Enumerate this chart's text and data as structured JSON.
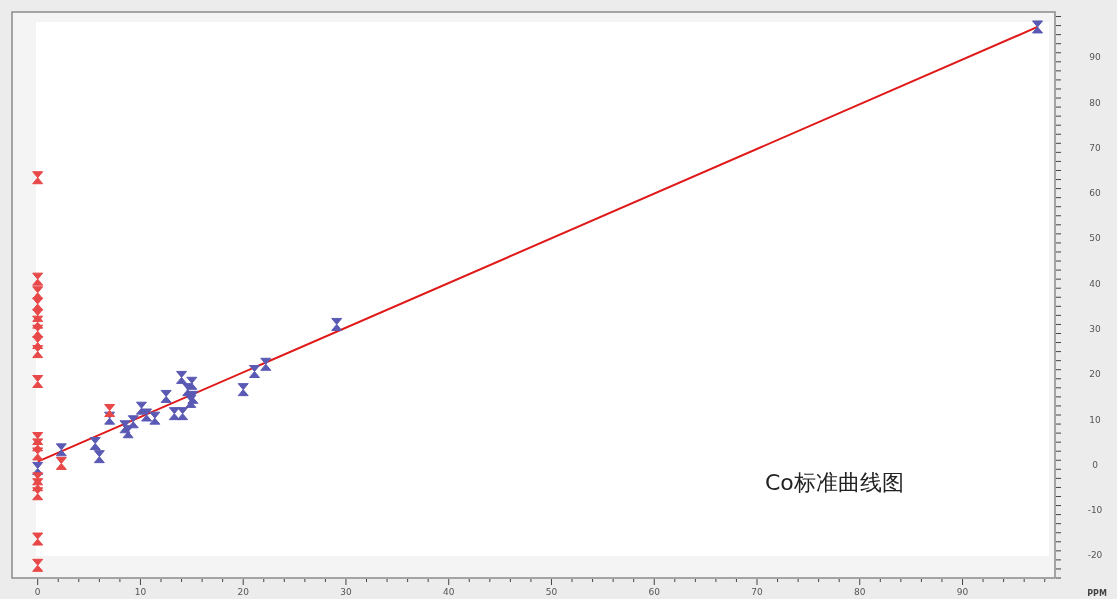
{
  "chart_data": {
    "type": "scatter",
    "xlabel": "PPM",
    "annotations": [
      "Co标准曲线图"
    ],
    "xlim": [
      -2.5,
      99
    ],
    "ylim": [
      -25,
      100
    ],
    "xticks": [
      0,
      10,
      20,
      30,
      40,
      50,
      60,
      70,
      80,
      90
    ],
    "yticks": [
      -20,
      -10,
      0,
      10,
      20,
      30,
      40,
      50,
      60,
      70,
      80,
      90
    ],
    "grid": false,
    "series": [
      {
        "color": "#5a5ab4",
        "x": [
          0,
          2.3,
          5.6,
          6.0,
          7.0,
          8.5,
          8.8,
          9.3,
          10.1,
          10.6,
          11.4,
          12.5,
          13.3,
          14.0,
          14.1,
          14.6,
          14.9,
          15.0,
          15.1,
          20.0,
          21.1,
          22.2,
          29.1,
          97.3
        ],
        "values": [
          -0.8,
          3.3,
          4.7,
          1.8,
          10.3,
          8.4,
          7.3,
          9.5,
          12.5,
          11.0,
          10.3,
          15.1,
          11.3,
          19.3,
          11.3,
          16.6,
          14.0,
          18.0,
          14.9,
          16.6,
          20.6,
          22.2,
          31.0,
          96.7
        ]
      },
      {
        "color": "#e84848",
        "x": [
          0,
          0,
          0,
          0,
          0,
          0,
          0,
          0,
          0,
          0,
          0,
          0,
          0,
          0,
          0,
          0,
          0,
          0,
          2.3,
          7.0
        ],
        "values": [
          63.4,
          41,
          38,
          35.5,
          33,
          31.5,
          29.5,
          27,
          25,
          18.4,
          5.8,
          4.4,
          2.4,
          -3.1,
          -4.4,
          -6.4,
          -16.4,
          -22.2,
          0.3,
          12
        ]
      },
      {
        "type": "line",
        "color": "#e01818",
        "x": [
          0,
          97.3
        ],
        "values": [
          0.7,
          96.7
        ]
      }
    ]
  }
}
